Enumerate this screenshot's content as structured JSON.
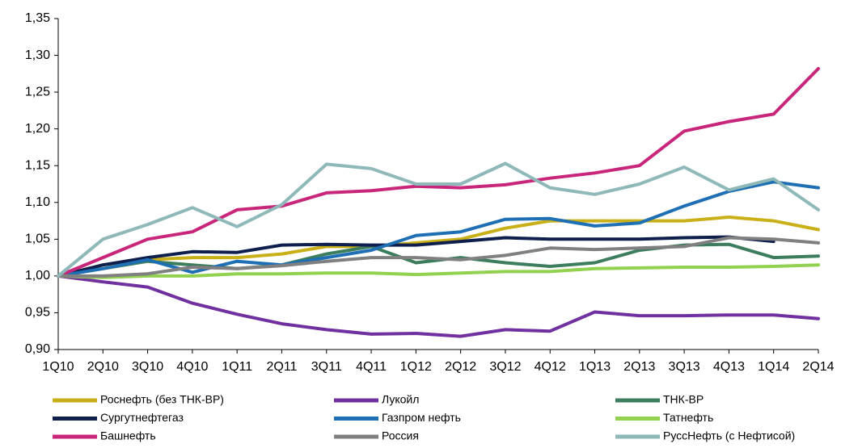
{
  "chart_data": {
    "type": "line",
    "categories": [
      "1Q10",
      "2Q10",
      "3Q10",
      "4Q10",
      "1Q11",
      "2Q11",
      "3Q11",
      "4Q11",
      "1Q12",
      "2Q12",
      "3Q12",
      "4Q12",
      "1Q13",
      "2Q13",
      "3Q13",
      "4Q13",
      "1Q14",
      "2Q14"
    ],
    "ylim": [
      0.9,
      1.35
    ],
    "yticks": [
      {
        "value": 0.9,
        "label": "0,90"
      },
      {
        "value": 0.95,
        "label": "0,95"
      },
      {
        "value": 1.0,
        "label": "1,00"
      },
      {
        "value": 1.05,
        "label": "1,05"
      },
      {
        "value": 1.1,
        "label": "1,10"
      },
      {
        "value": 1.15,
        "label": "1,15"
      },
      {
        "value": 1.2,
        "label": "1,20"
      },
      {
        "value": 1.25,
        "label": "1,25"
      },
      {
        "value": 1.3,
        "label": "1,30"
      },
      {
        "value": 1.35,
        "label": "1,35"
      }
    ],
    "series": [
      {
        "name": "Роснефть (без ТНК-ВР)",
        "color": "#c9b018",
        "values": [
          1.0,
          1.015,
          1.022,
          1.025,
          1.025,
          1.03,
          1.04,
          1.04,
          1.045,
          1.05,
          1.065,
          1.075,
          1.075,
          1.075,
          1.075,
          1.08,
          1.075,
          1.063
        ]
      },
      {
        "name": "Лукойл",
        "color": "#7030a0",
        "values": [
          1.0,
          0.992,
          0.985,
          0.963,
          0.948,
          0.935,
          0.927,
          0.921,
          0.922,
          0.918,
          0.927,
          0.925,
          0.951,
          0.946,
          0.946,
          0.947,
          0.947,
          0.942
        ]
      },
      {
        "name": "ТНК-ВР",
        "color": "#3b7d5c",
        "values": [
          1.0,
          1.01,
          1.02,
          1.015,
          1.01,
          1.015,
          1.03,
          1.04,
          1.018,
          1.025,
          1.018,
          1.013,
          1.018,
          1.035,
          1.042,
          1.043,
          1.025,
          1.027
        ]
      },
      {
        "name": "Сургутнефтегаз",
        "color": "#0e1f4d",
        "values": [
          1.0,
          1.015,
          1.025,
          1.033,
          1.032,
          1.042,
          1.043,
          1.042,
          1.042,
          1.047,
          1.052,
          1.05,
          1.05,
          1.05,
          1.052,
          1.053,
          1.047,
          null
        ]
      },
      {
        "name": "Газпром нефть",
        "color": "#1f6fb5",
        "values": [
          1.0,
          1.01,
          1.022,
          1.005,
          1.02,
          1.015,
          1.025,
          1.035,
          1.055,
          1.06,
          1.077,
          1.078,
          1.068,
          1.072,
          1.095,
          1.115,
          1.128,
          1.12
        ]
      },
      {
        "name": "Татнефть",
        "color": "#92d050",
        "values": [
          1.0,
          0.998,
          1.0,
          1.0,
          1.003,
          1.003,
          1.004,
          1.004,
          1.002,
          1.004,
          1.006,
          1.006,
          1.01,
          1.011,
          1.012,
          1.012,
          1.013,
          1.015
        ]
      },
      {
        "name": "Башнефть",
        "color": "#c8267a",
        "values": [
          1.0,
          1.025,
          1.05,
          1.06,
          1.09,
          1.095,
          1.113,
          1.116,
          1.122,
          1.12,
          1.124,
          1.133,
          1.14,
          1.15,
          1.197,
          1.21,
          1.22,
          1.282
        ]
      },
      {
        "name": "Россия",
        "color": "#808080",
        "values": [
          1.0,
          1.0,
          1.003,
          1.012,
          1.01,
          1.014,
          1.02,
          1.025,
          1.025,
          1.022,
          1.028,
          1.038,
          1.036,
          1.038,
          1.04,
          1.052,
          1.05,
          1.045
        ]
      },
      {
        "name": "РуссНефть (с Нефтисой)",
        "color": "#8fb8b8",
        "values": [
          1.0,
          1.05,
          1.07,
          1.093,
          1.067,
          1.097,
          1.152,
          1.146,
          1.125,
          1.125,
          1.153,
          1.12,
          1.111,
          1.125,
          1.148,
          1.117,
          1.132,
          1.09
        ]
      }
    ]
  }
}
